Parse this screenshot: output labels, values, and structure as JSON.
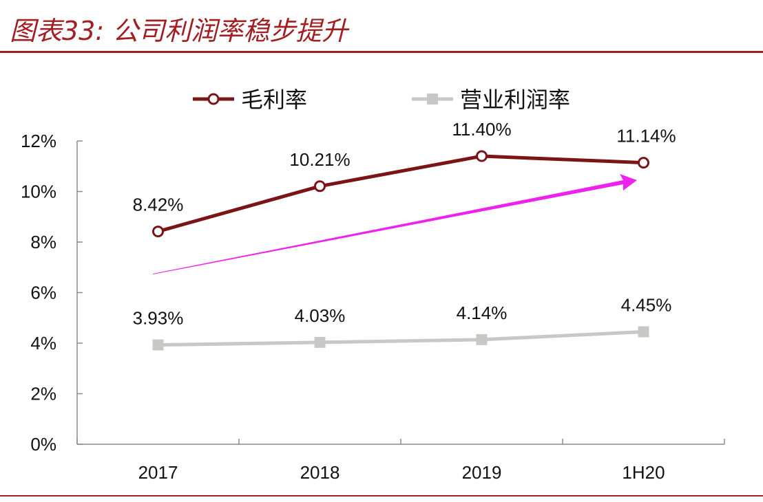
{
  "title": "图表33: 公司利润率稳步提升",
  "chart_data": {
    "type": "line",
    "categories": [
      "2017",
      "2018",
      "2019",
      "1H20"
    ],
    "series": [
      {
        "name": "毛利率",
        "values": [
          8.42,
          10.21,
          11.4,
          11.14
        ],
        "labels": [
          "8.42%",
          "10.21%",
          "11.40%",
          "11.14%"
        ],
        "color": "#7b1416",
        "marker": "open-circle"
      },
      {
        "name": "营业利润率",
        "values": [
          3.93,
          4.03,
          4.14,
          4.45
        ],
        "labels": [
          "3.93%",
          "4.03%",
          "4.14%",
          "4.45%"
        ],
        "color": "#c8c8c4",
        "marker": "square"
      }
    ],
    "yticks": [
      "0%",
      "2%",
      "4%",
      "6%",
      "8%",
      "10%",
      "12%"
    ],
    "ylim": [
      0,
      12
    ],
    "legend": "top",
    "grid": false,
    "annotation": {
      "type": "arrow",
      "color": "#ee22ee",
      "direction": "up-right"
    }
  }
}
